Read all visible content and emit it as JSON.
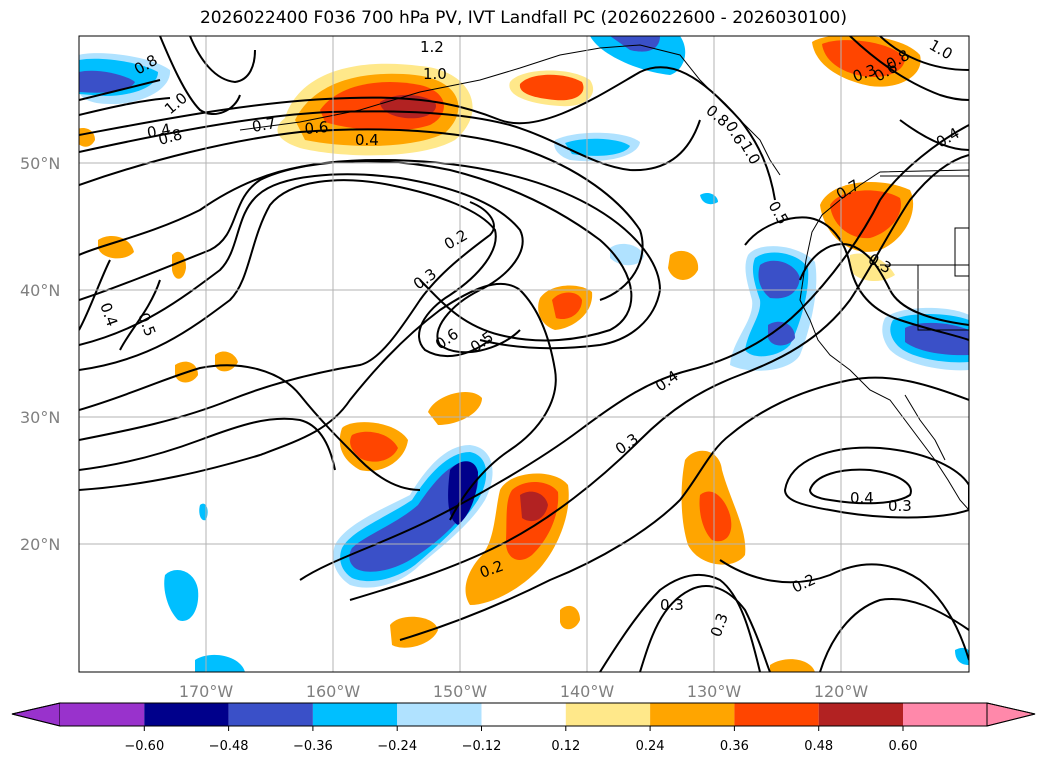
{
  "title": "2026022400 F036 700 hPa PV, IVT Landfall PC (2026022600 - 2026030100)",
  "map": {
    "projection": "PlateCarree",
    "lon_range": [
      -180,
      -110
    ],
    "lat_range": [
      10,
      60
    ],
    "gridlines": true,
    "lat_labels": [
      "50°N",
      "40°N",
      "30°N",
      "20°N"
    ],
    "lon_labels": [
      "170°W",
      "160°W",
      "150°W",
      "140°W",
      "130°W",
      "120°W"
    ]
  },
  "contour_labels": [
    "0.8",
    "1.0",
    "0.8",
    "0.7",
    "0.6",
    "0.4",
    "1.0",
    "1.2",
    "0.8",
    "0.6",
    "1.0",
    "0.5",
    "0.4",
    "0.7",
    "0.3",
    "0.2",
    "0.3",
    "0.6",
    "0.5",
    "0.4",
    "0.3",
    "0.5",
    "0.4",
    "0.2",
    "0.3",
    "0.4",
    "0.3",
    "0.2",
    "0.3",
    "0.3",
    "0.8",
    "0.6",
    "1.0",
    "0.4"
  ],
  "colorbar": {
    "ticks": [
      "−0.60",
      "−0.48",
      "−0.36",
      "−0.24",
      "−0.12",
      "0.12",
      "0.24",
      "0.36",
      "0.48",
      "0.60"
    ],
    "colors": [
      "#9932cc",
      "#00008b",
      "#3a50c8",
      "#00bfff",
      "#b0e2ff",
      "#ffffff",
      "#ffe88a",
      "#ffa500",
      "#ff4500",
      "#b22222",
      "#ff88aa"
    ]
  },
  "shading_colors": {
    "neg_light": "#b0e2ff",
    "neg_mid": "#00bfff",
    "neg_strong": "#3a50c8",
    "neg_max": "#00008b",
    "pos_light": "#ffe88a",
    "pos_mid": "#ffa500",
    "pos_strong": "#ff4500",
    "pos_max": "#b22222"
  }
}
